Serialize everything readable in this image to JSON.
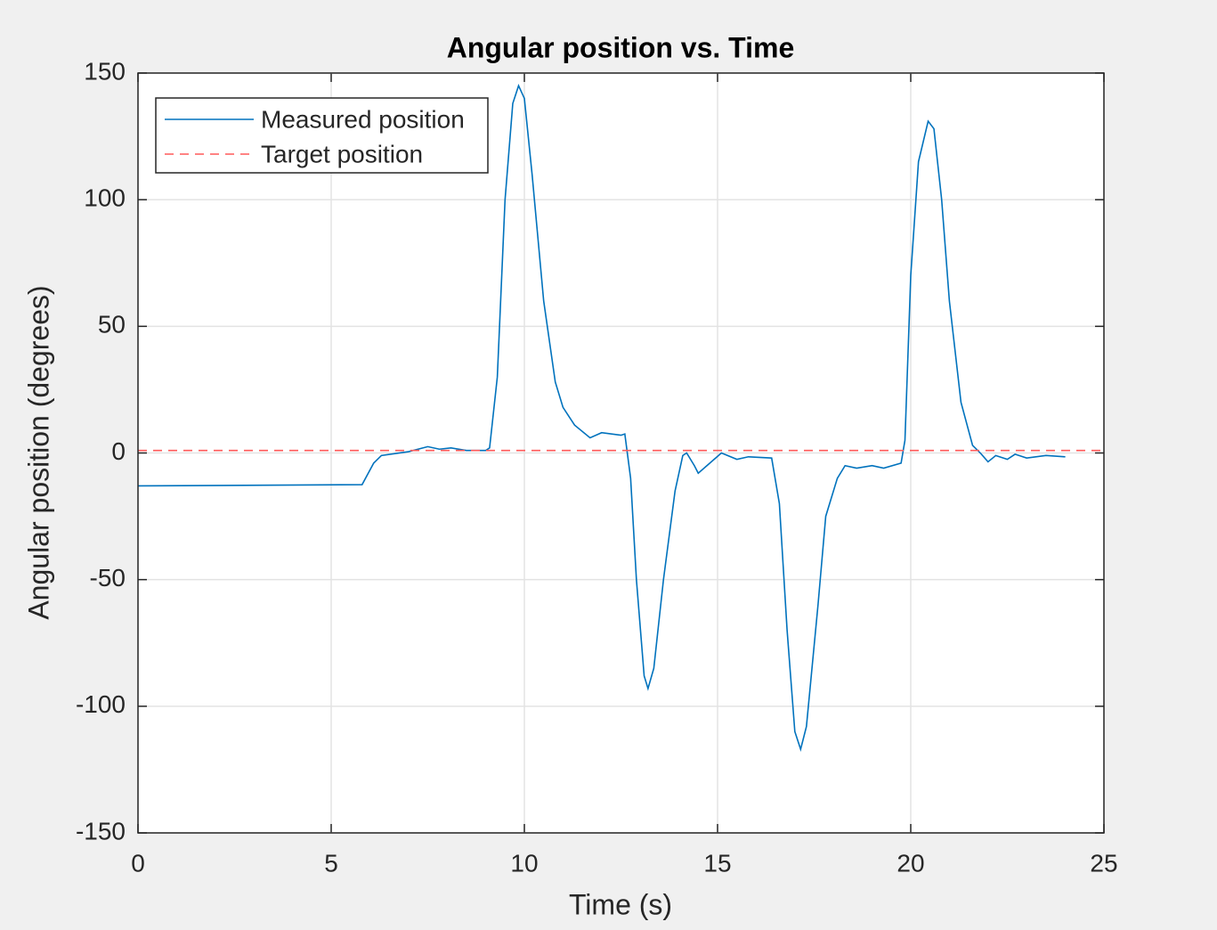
{
  "chart_data": {
    "type": "line",
    "title": "Angular position vs. Time",
    "x_label": "Time (s)",
    "y_label": "Angular position (degrees)",
    "xlim": [
      0,
      25
    ],
    "xticks": [
      0,
      5,
      10,
      15,
      20,
      25
    ],
    "ylim": [
      -150,
      150
    ],
    "yticks": [
      -150,
      -100,
      -50,
      0,
      50,
      100,
      150
    ],
    "grid": true,
    "legend": "northwest",
    "series": [
      {
        "name": "Measured position",
        "color": "#0072bd",
        "line_style": "solid",
        "x": [
          0,
          5.8,
          6.1,
          6.3,
          7,
          7.5,
          7.8,
          8.1,
          8.5,
          9.0,
          9.1,
          9.3,
          9.5,
          9.7,
          9.85,
          10.0,
          10.2,
          10.5,
          10.8,
          11.0,
          11.3,
          11.7,
          12.0,
          12.5,
          12.6,
          12.75,
          12.9,
          13.1,
          13.2,
          13.35,
          13.6,
          13.9,
          14.1,
          14.2,
          14.4,
          14.5,
          14.8,
          15.1,
          15.5,
          15.8,
          16.4,
          16.6,
          16.8,
          17.0,
          17.15,
          17.3,
          17.6,
          17.8,
          18.1,
          18.3,
          18.6,
          19.0,
          19.3,
          19.75,
          19.85,
          20.0,
          20.2,
          20.45,
          20.6,
          20.8,
          21.0,
          21.3,
          21.6,
          21.8,
          22.0,
          22.2,
          22.5,
          22.7,
          23.0,
          23.5,
          24.0
        ],
        "values": [
          -13,
          -12.5,
          -4,
          -1,
          0.5,
          2.5,
          1.5,
          2,
          1,
          1,
          2,
          30,
          100,
          138,
          145,
          140,
          110,
          60,
          28,
          18,
          11,
          6,
          8,
          7,
          7.5,
          -10,
          -50,
          -88,
          -93,
          -85,
          -50,
          -15,
          -1,
          0,
          -5,
          -8,
          -4,
          0,
          -2.5,
          -1.5,
          -2,
          -20,
          -70,
          -110,
          -117,
          -108,
          -60,
          -25,
          -10,
          -5,
          -6,
          -5,
          -6,
          -4,
          5,
          70,
          115,
          131,
          128,
          100,
          60,
          20,
          3,
          0,
          -3.5,
          -1,
          -2.5,
          -0.5,
          -2,
          -1,
          -1.5
        ]
      },
      {
        "name": "Target position",
        "color": "#ff5a5a",
        "line_style": "dashed",
        "x": [
          0,
          25
        ],
        "values": [
          1,
          1
        ]
      }
    ]
  }
}
